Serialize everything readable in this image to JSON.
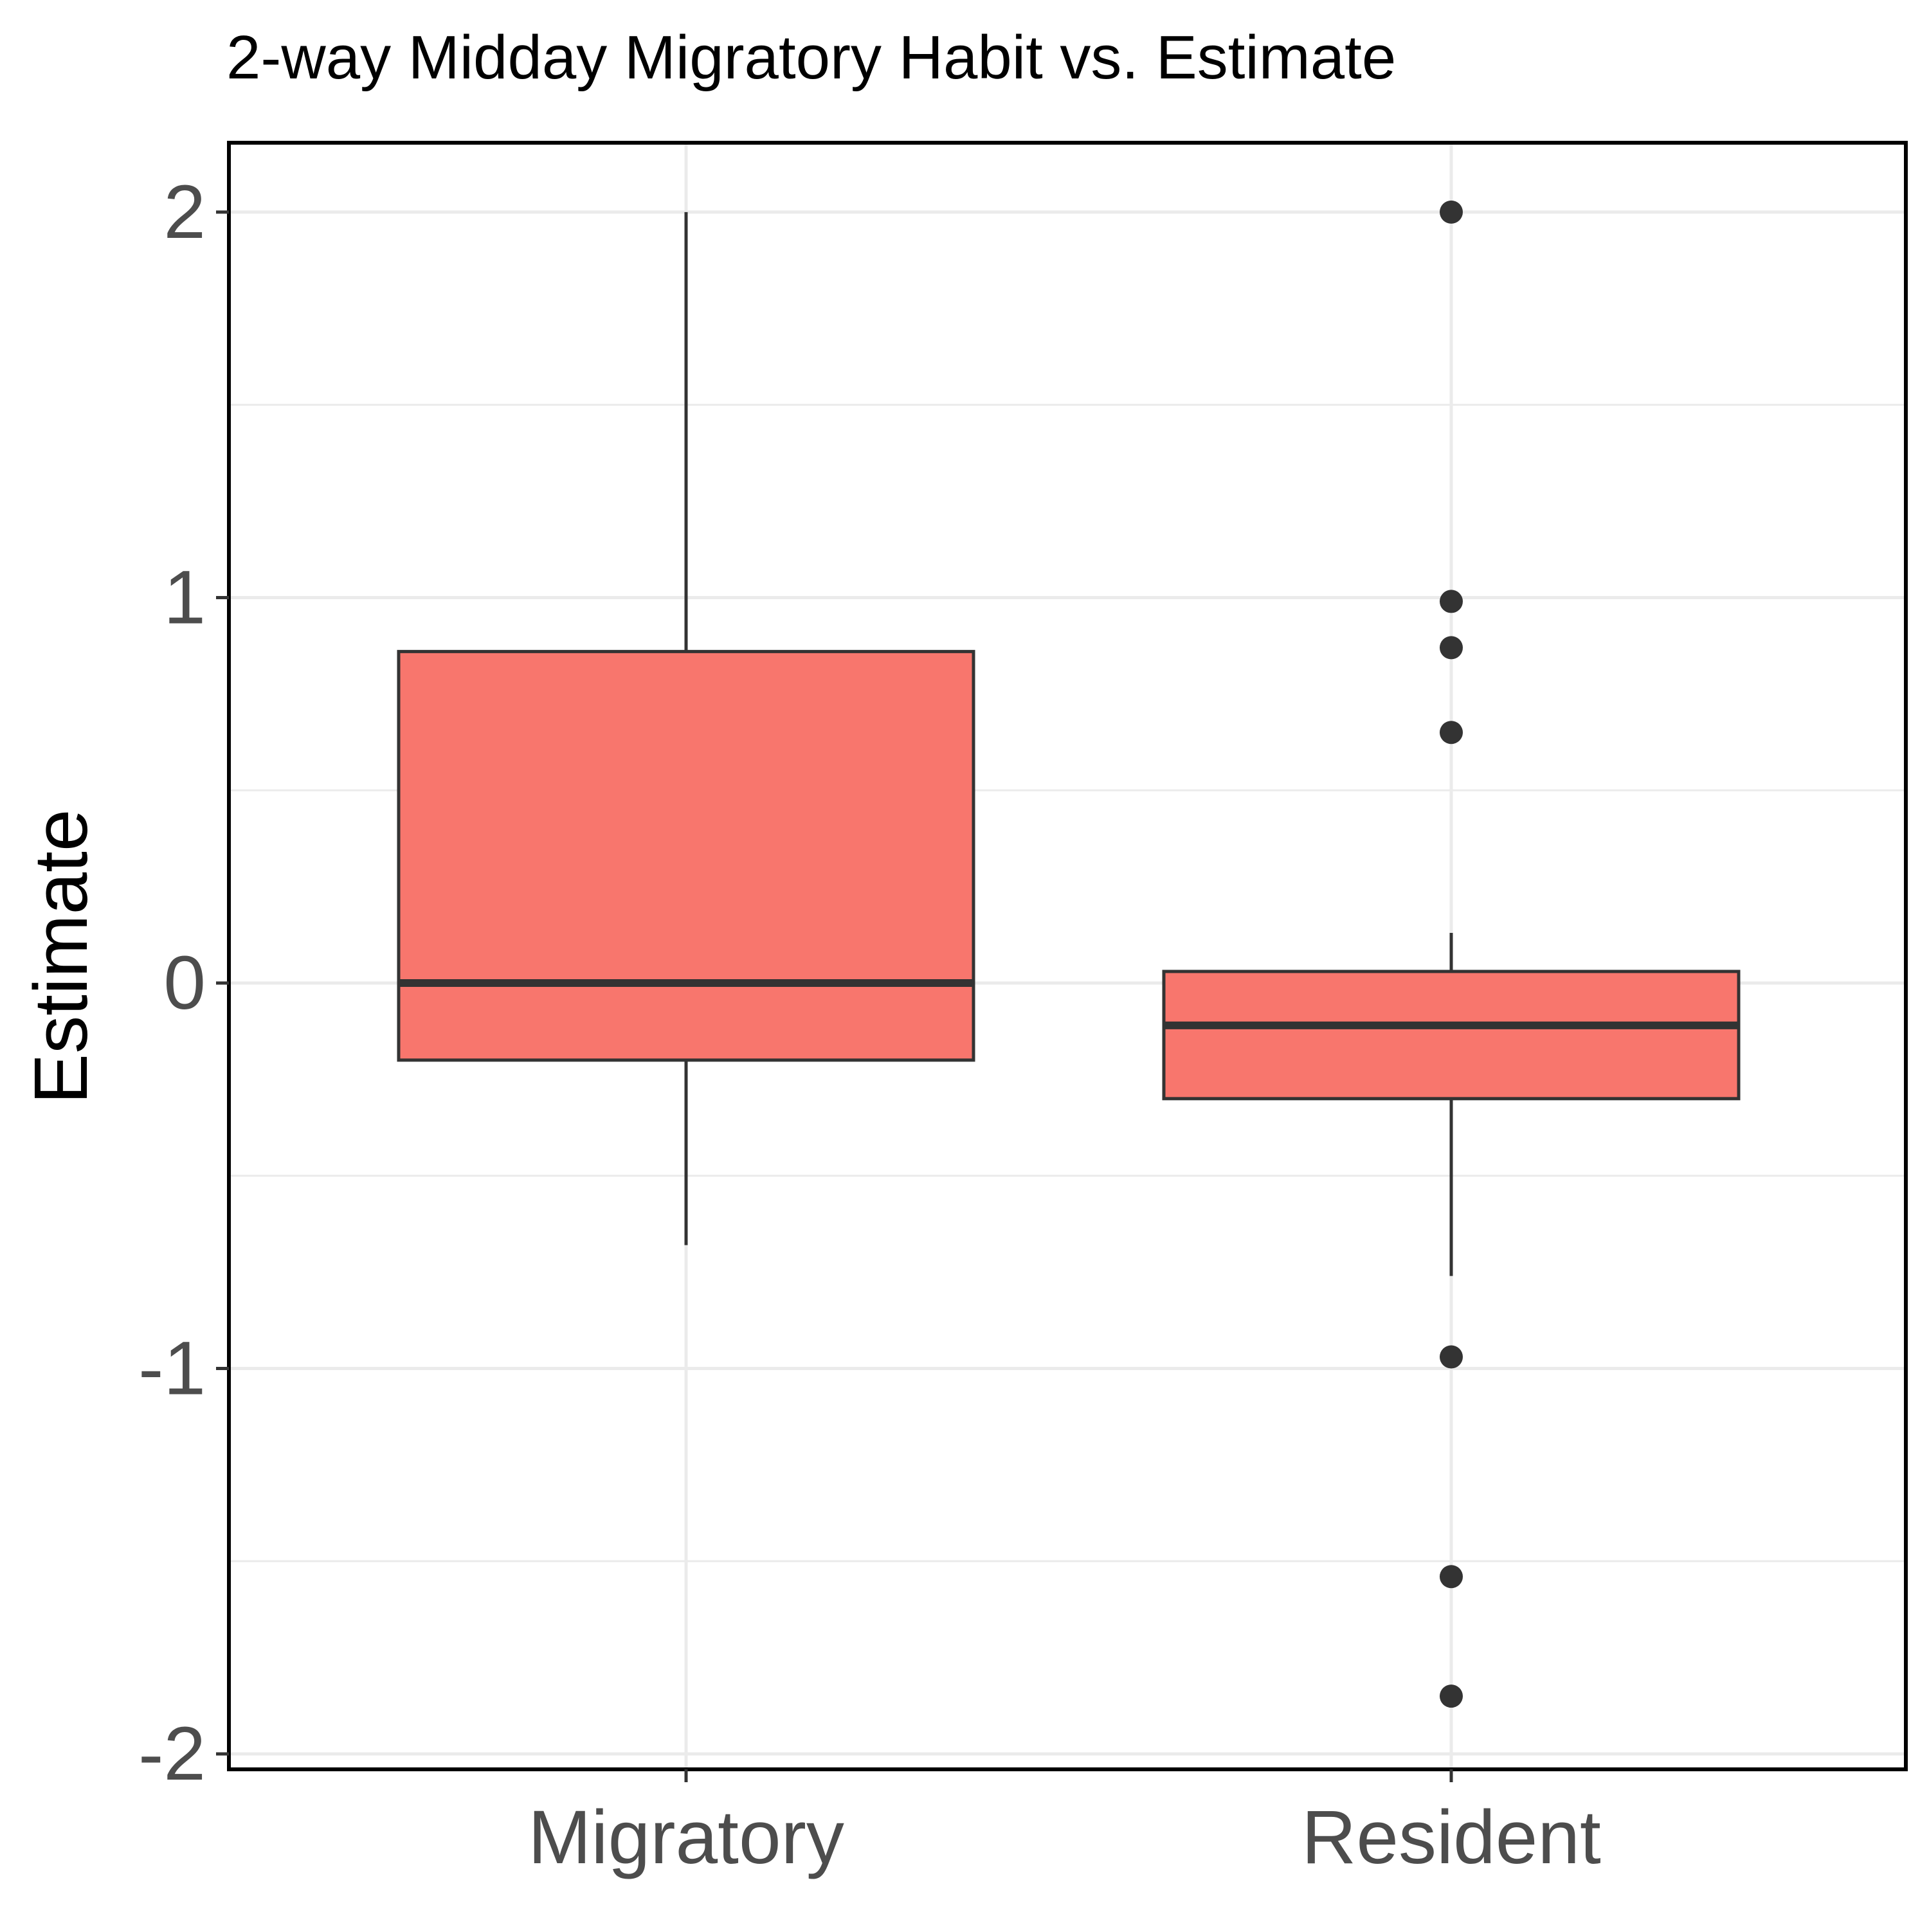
{
  "chart_data": {
    "type": "box",
    "title": "2-way Midday Migratory Habit vs. Estimate",
    "xlabel": "",
    "ylabel": "Estimate",
    "ylim": [
      -2.04,
      2.18
    ],
    "y_ticks": [
      -2,
      -1,
      0,
      1,
      2
    ],
    "y_tick_labels": [
      "-2",
      "-1",
      "0",
      "1",
      "2"
    ],
    "minor_gridlines": [
      -1.5,
      -0.5,
      0.5,
      1.5
    ],
    "grid": "horizontal",
    "legend": "none",
    "categories": [
      "Migratory",
      "Resident"
    ],
    "boxes": [
      {
        "category": "Migratory",
        "whisker_low": -0.68,
        "q1": -0.2,
        "median": 0.0,
        "q3": 0.86,
        "whisker_high": 2.0,
        "outliers": []
      },
      {
        "category": "Resident",
        "whisker_low": -0.76,
        "q1": -0.3,
        "median": -0.11,
        "q3": 0.03,
        "whisker_high": 0.13,
        "outliers": [
          2.0,
          0.99,
          0.87,
          0.65,
          -0.97,
          -1.54,
          -1.85
        ]
      }
    ],
    "colors": {
      "box_fill": "#F8766D",
      "box_line": "#333333",
      "panel_border": "#000000",
      "grid": "#EBEBEB",
      "tick_text": "#4D4D4D"
    }
  }
}
